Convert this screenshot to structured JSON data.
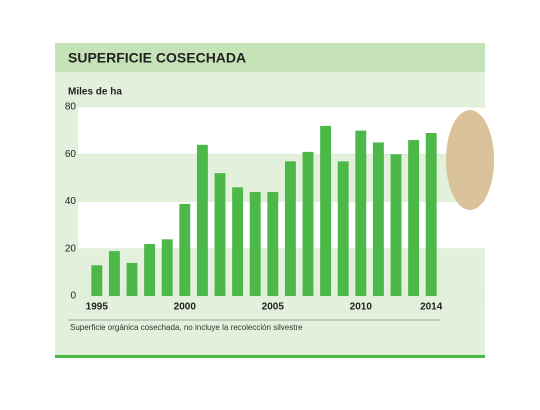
{
  "chart_data": {
    "type": "bar",
    "title": "SUPERFICIE COSECHADA",
    "y_label": "Miles de ha",
    "note": "Superficie orgánica cosechada, no incluye la recolección silvestre",
    "categories": [
      "1995",
      null,
      null,
      null,
      null,
      "2000",
      null,
      null,
      null,
      null,
      "2005",
      null,
      null,
      null,
      null,
      "2010",
      null,
      null,
      null,
      "2014"
    ],
    "values": [
      13,
      19,
      14,
      22,
      24,
      39,
      64,
      52,
      46,
      44,
      44,
      57,
      61,
      72,
      57,
      70,
      65,
      60,
      66,
      69
    ],
    "color": "#4cb848",
    "ylim": [
      0,
      80
    ],
    "yticks": [
      0,
      20,
      40,
      60,
      80
    ],
    "grid": true
  }
}
